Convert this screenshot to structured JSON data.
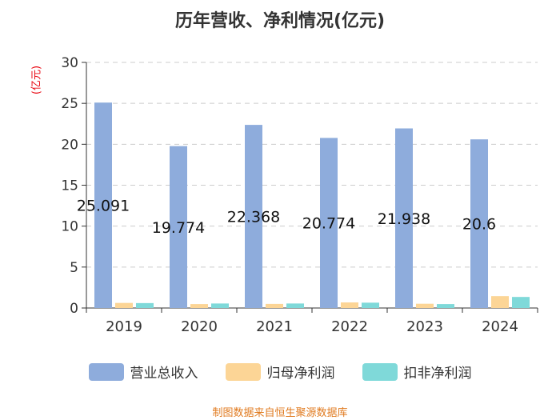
{
  "chart_data": {
    "type": "bar",
    "title": "历年营收、净利情况(亿元)",
    "ylabel": "(亿元)",
    "xlabel": "",
    "ylim": [
      0,
      30
    ],
    "yticks": [
      0,
      5,
      10,
      15,
      20,
      25,
      30
    ],
    "categories": [
      "2019",
      "2020",
      "2021",
      "2022",
      "2023",
      "2024"
    ],
    "series": [
      {
        "name": "营业总收入",
        "color": "#8eacdc",
        "values": [
          25.091,
          19.774,
          22.368,
          20.774,
          21.938,
          20.6
        ],
        "labels": [
          "25.091",
          "19.774",
          "22.368",
          "20.774",
          "21.938",
          "20.6"
        ]
      },
      {
        "name": "归母净利润",
        "color": "#fcd596",
        "values": [
          0.62,
          0.48,
          0.5,
          0.68,
          0.52,
          1.45
        ]
      },
      {
        "name": "扣非净利润",
        "color": "#7fd9d9",
        "values": [
          0.6,
          0.55,
          0.55,
          0.65,
          0.48,
          1.35
        ]
      }
    ],
    "legend_position": "bottom",
    "grid": true
  },
  "footer": "制图数据来自恒生聚源数据库"
}
